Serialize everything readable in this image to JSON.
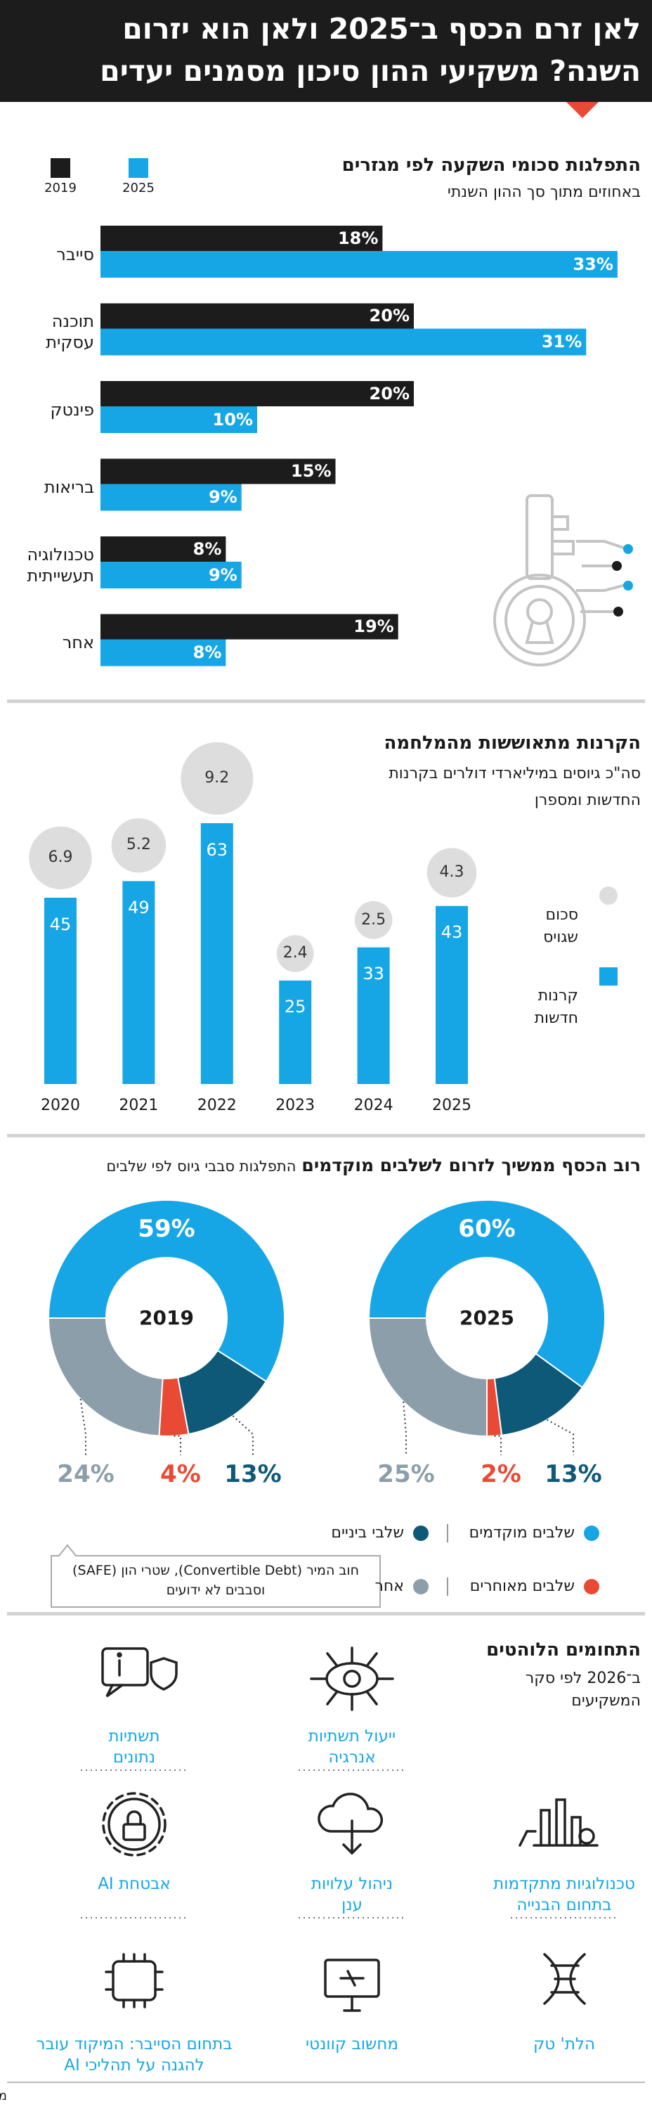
{
  "title": [
    "לאן זרם הכסף ב־2025 ולאן הוא יזרום",
    "השנה? משקיעי ההון סיכון מסמנים יעדים"
  ],
  "chart_data": [
    {
      "type": "bar",
      "orientation": "horizontal",
      "title": "התפלגות סכומי השקעה לפי מגזרים",
      "subtitle": "באחוזים מתוך סך ההון השנתי",
      "categories": [
        "סייבר",
        "תוכנה עסקית",
        "פינטק",
        "בריאות",
        "טכנולוגיה תעשייתית",
        "אחר"
      ],
      "series": [
        {
          "name": "2019",
          "color": "#1c1c1c",
          "values": [
            18,
            20,
            20,
            15,
            8,
            19
          ],
          "value_labels": [
            "18%",
            "20%",
            "20%",
            "15%",
            "8%",
            "19%"
          ]
        },
        {
          "name": "2025",
          "color": "#16a6e6",
          "values": [
            33,
            31,
            10,
            9,
            9,
            8
          ],
          "value_labels": [
            "33%",
            "31%",
            "10%",
            "9%",
            "9%",
            "8%"
          ]
        }
      ]
    },
    {
      "type": "bar",
      "title": "הקרנות מתאוששות מהמלחמה",
      "subtitle": "סה\"כ גיוסים במיליארדי דולרים בקרנות החדשות ומספרן",
      "categories": [
        "2020",
        "2021",
        "2022",
        "2023",
        "2024",
        "2025"
      ],
      "series": [
        {
          "name": "סכום שגויס",
          "type": "bubble",
          "color": "#dddddd",
          "values": [
            6.9,
            5.2,
            9.2,
            2.4,
            2.5,
            4.3
          ]
        },
        {
          "name": "קרנות חדשות",
          "type": "bar",
          "color": "#16a6e6",
          "values": [
            45,
            49,
            63,
            25,
            33,
            43
          ]
        }
      ]
    },
    {
      "type": "donut",
      "title": "רוב הכסף ממשיך לזרום לשלבים מוקדמים",
      "subtitle": "התפלגות סבבי גיוס לפי שלבים",
      "categories": [
        "שלבים מוקדמים",
        "שלבי ביניים",
        "שלבים מאוחרים",
        "אחר"
      ],
      "colors": [
        "#16a6e6",
        "#0e5878",
        "#e94a35",
        "#8b9ea9"
      ],
      "annotation": "חוב המיר (Convertible Debt), שטרי הון (SAFE) וסבבים לא ידועים",
      "series": [
        {
          "name": "2019",
          "values": [
            59,
            13,
            4,
            24
          ],
          "value_labels": [
            "59%",
            "13%",
            "4%",
            "24%"
          ]
        },
        {
          "name": "2025",
          "values": [
            60,
            13,
            2,
            25
          ],
          "value_labels": [
            "60%",
            "13%",
            "2%",
            "25%"
          ]
        }
      ]
    }
  ],
  "trends": {
    "title": "התחומים הלוהטים",
    "subtitle": "ב־2026 לפי סקר המשקיעים",
    "items": [
      "ייעול תשתיות אנרגיה",
      "תשתיות נתונים",
      "טכנולוגיות מתקדמות בתחום הבנייה",
      "ניהול עלויות ענן",
      "אבטחת AI",
      "הלת' טק",
      "מחשוב קוונטי",
      "בתחום הסייבר: המיקוד עובר להגנה על תהליכי AI"
    ]
  },
  "source": "מקור: SNC"
}
